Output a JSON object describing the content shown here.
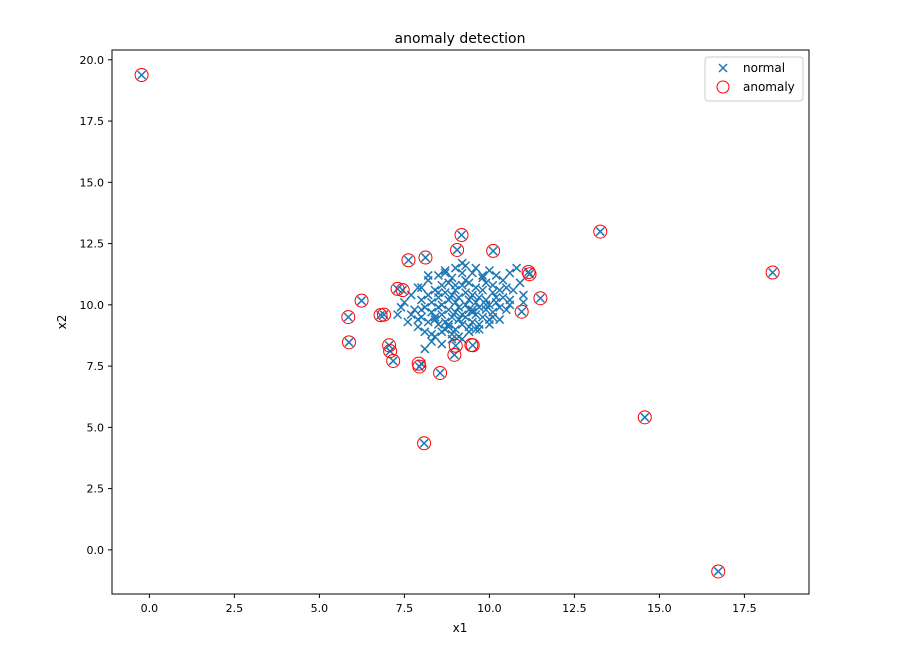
{
  "chart_data": {
    "type": "scatter",
    "title": "anomaly detection",
    "xlabel": "x1",
    "ylabel": "x2",
    "xlim": [
      -1.1,
      19.4
    ],
    "ylim": [
      -1.8,
      20.4
    ],
    "xticks": [
      0.0,
      2.5,
      5.0,
      7.5,
      10.0,
      12.5,
      15.0,
      17.5
    ],
    "yticks": [
      0.0,
      2.5,
      5.0,
      7.5,
      10.0,
      12.5,
      15.0,
      17.5,
      20.0
    ],
    "xtick_labels": [
      "0.0",
      "2.5",
      "5.0",
      "7.5",
      "10.0",
      "12.5",
      "15.0",
      "17.5"
    ],
    "ytick_labels": [
      "0.0",
      "2.5",
      "5.0",
      "7.5",
      "10.0",
      "12.5",
      "15.0",
      "17.5",
      "20.0"
    ],
    "grid": false,
    "legend_position": "top-right",
    "series": [
      {
        "name": "normal",
        "marker": "x",
        "color": "#1f77b4",
        "x": [
          7.3,
          7.5,
          7.6,
          7.7,
          7.8,
          7.9,
          7.9,
          8.0,
          8.0,
          8.1,
          8.1,
          8.2,
          8.2,
          8.2,
          8.3,
          8.3,
          8.3,
          8.4,
          8.4,
          8.4,
          8.5,
          8.5,
          8.5,
          8.5,
          8.6,
          8.6,
          8.6,
          8.6,
          8.7,
          8.7,
          8.7,
          8.7,
          8.8,
          8.8,
          8.8,
          8.8,
          8.9,
          8.9,
          8.9,
          8.9,
          9.0,
          9.0,
          9.0,
          9.0,
          9.0,
          9.1,
          9.1,
          9.1,
          9.1,
          9.2,
          9.2,
          9.2,
          9.2,
          9.3,
          9.3,
          9.3,
          9.3,
          9.4,
          9.4,
          9.4,
          9.4,
          9.5,
          9.5,
          9.5,
          9.5,
          9.6,
          9.6,
          9.6,
          9.6,
          9.7,
          9.7,
          9.7,
          9.8,
          9.8,
          9.8,
          9.9,
          9.9,
          9.9,
          10.0,
          10.0,
          10.0,
          10.1,
          10.1,
          10.1,
          10.2,
          10.2,
          10.3,
          10.3,
          10.4,
          10.4,
          10.5,
          10.5,
          10.6,
          10.6,
          10.7,
          10.8,
          10.9,
          11.0,
          8.1,
          8.3,
          8.6,
          8.9,
          9.2,
          9.4,
          9.7,
          10.0,
          10.3,
          8.0,
          8.4,
          8.8,
          9.1,
          9.5,
          9.9,
          10.2,
          8.7,
          9.3,
          9.8,
          7.4,
          7.7,
          8.0,
          8.2,
          9.0,
          9.6,
          10.1,
          10.6,
          11.0,
          7.9,
          8.5,
          9.2,
          8.0,
          7.94,
          8.55,
          8.97,
          9.51,
          9.01,
          10.95,
          11.15,
          7.05,
          7.08,
          7.17,
          6.9,
          5.85,
          5.87,
          6.24,
          7.3,
          7.45,
          7.62,
          8.12,
          9.05,
          9.18,
          10.11,
          11.5,
          13.26,
          14.57,
          16.73,
          18.33,
          -0.23,
          8.08,
          11.18,
          6.8
        ],
        "y": [
          9.6,
          10.1,
          9.3,
          10.4,
          9.8,
          9.1,
          10.7,
          9.5,
          10.2,
          8.9,
          9.9,
          9.3,
          10.4,
          11.0,
          9.7,
          8.8,
          10.1,
          9.4,
          10.6,
          8.7,
          9.9,
          9.2,
          10.3,
          11.2,
          9.6,
          8.9,
          10.0,
          10.8,
          9.3,
          10.5,
          9.0,
          11.3,
          9.8,
          9.1,
          10.2,
          10.9,
          9.5,
          10.4,
          8.8,
          11.1,
          9.7,
          10.1,
          9.0,
          10.6,
          11.5,
          9.4,
          9.9,
          10.3,
          8.7,
          9.6,
          10.8,
          9.2,
          11.7,
          10.0,
          9.5,
          10.5,
          11.0,
          9.8,
          10.2,
          9.1,
          10.9,
          9.7,
          10.4,
          11.3,
          9.3,
          10.1,
          9.6,
          10.7,
          11.5,
          9.9,
          10.3,
          9.2,
          10.6,
          9.5,
          11.1,
          10.2,
          9.8,
          10.9,
          10.0,
          9.4,
          11.4,
          10.5,
          9.7,
          10.8,
          10.1,
          11.2,
          9.9,
          10.6,
          10.3,
          11.0,
          10.7,
          9.8,
          11.3,
          10.2,
          10.6,
          11.5,
          10.9,
          10.4,
          8.2,
          8.5,
          8.4,
          8.6,
          8.6,
          8.9,
          9.0,
          9.2,
          9.4,
          9.8,
          9.5,
          9.2,
          9.4,
          9.8,
          10.0,
          10.3,
          11.4,
          11.6,
          11.2,
          9.9,
          9.6,
          10.7,
          11.2,
          10.8,
          9.0,
          9.5,
          10.0,
          10.1,
          9.4,
          10.5,
          11.3,
          7.6,
          7.48,
          7.22,
          7.96,
          8.35,
          8.33,
          9.72,
          11.34,
          8.35,
          8.11,
          7.71,
          9.6,
          9.5,
          8.47,
          10.17,
          10.65,
          10.6,
          11.82,
          11.93,
          12.24,
          12.85,
          12.2,
          10.27,
          12.99,
          5.41,
          -0.88,
          11.32,
          19.38,
          4.35,
          11.25,
          9.58
        ]
      },
      {
        "name": "anomaly",
        "marker": "o",
        "color": "#ff0000",
        "x": [
          7.94,
          8.55,
          8.97,
          9.51,
          9.01,
          10.95,
          11.15,
          7.05,
          7.08,
          7.17,
          6.9,
          5.85,
          5.87,
          6.24,
          7.3,
          7.45,
          7.62,
          8.12,
          9.05,
          9.18,
          10.11,
          11.5,
          13.26,
          14.57,
          16.73,
          18.33,
          -0.23,
          8.08,
          11.18,
          6.8,
          9.47,
          7.92
        ],
        "y": [
          7.48,
          7.22,
          7.96,
          8.35,
          8.33,
          9.72,
          11.34,
          8.35,
          8.11,
          7.71,
          9.6,
          9.5,
          8.47,
          10.17,
          10.65,
          10.6,
          11.82,
          11.93,
          12.24,
          12.85,
          12.2,
          10.27,
          12.99,
          5.41,
          -0.88,
          11.32,
          19.38,
          4.35,
          11.25,
          9.58,
          8.36,
          7.6
        ]
      }
    ]
  }
}
